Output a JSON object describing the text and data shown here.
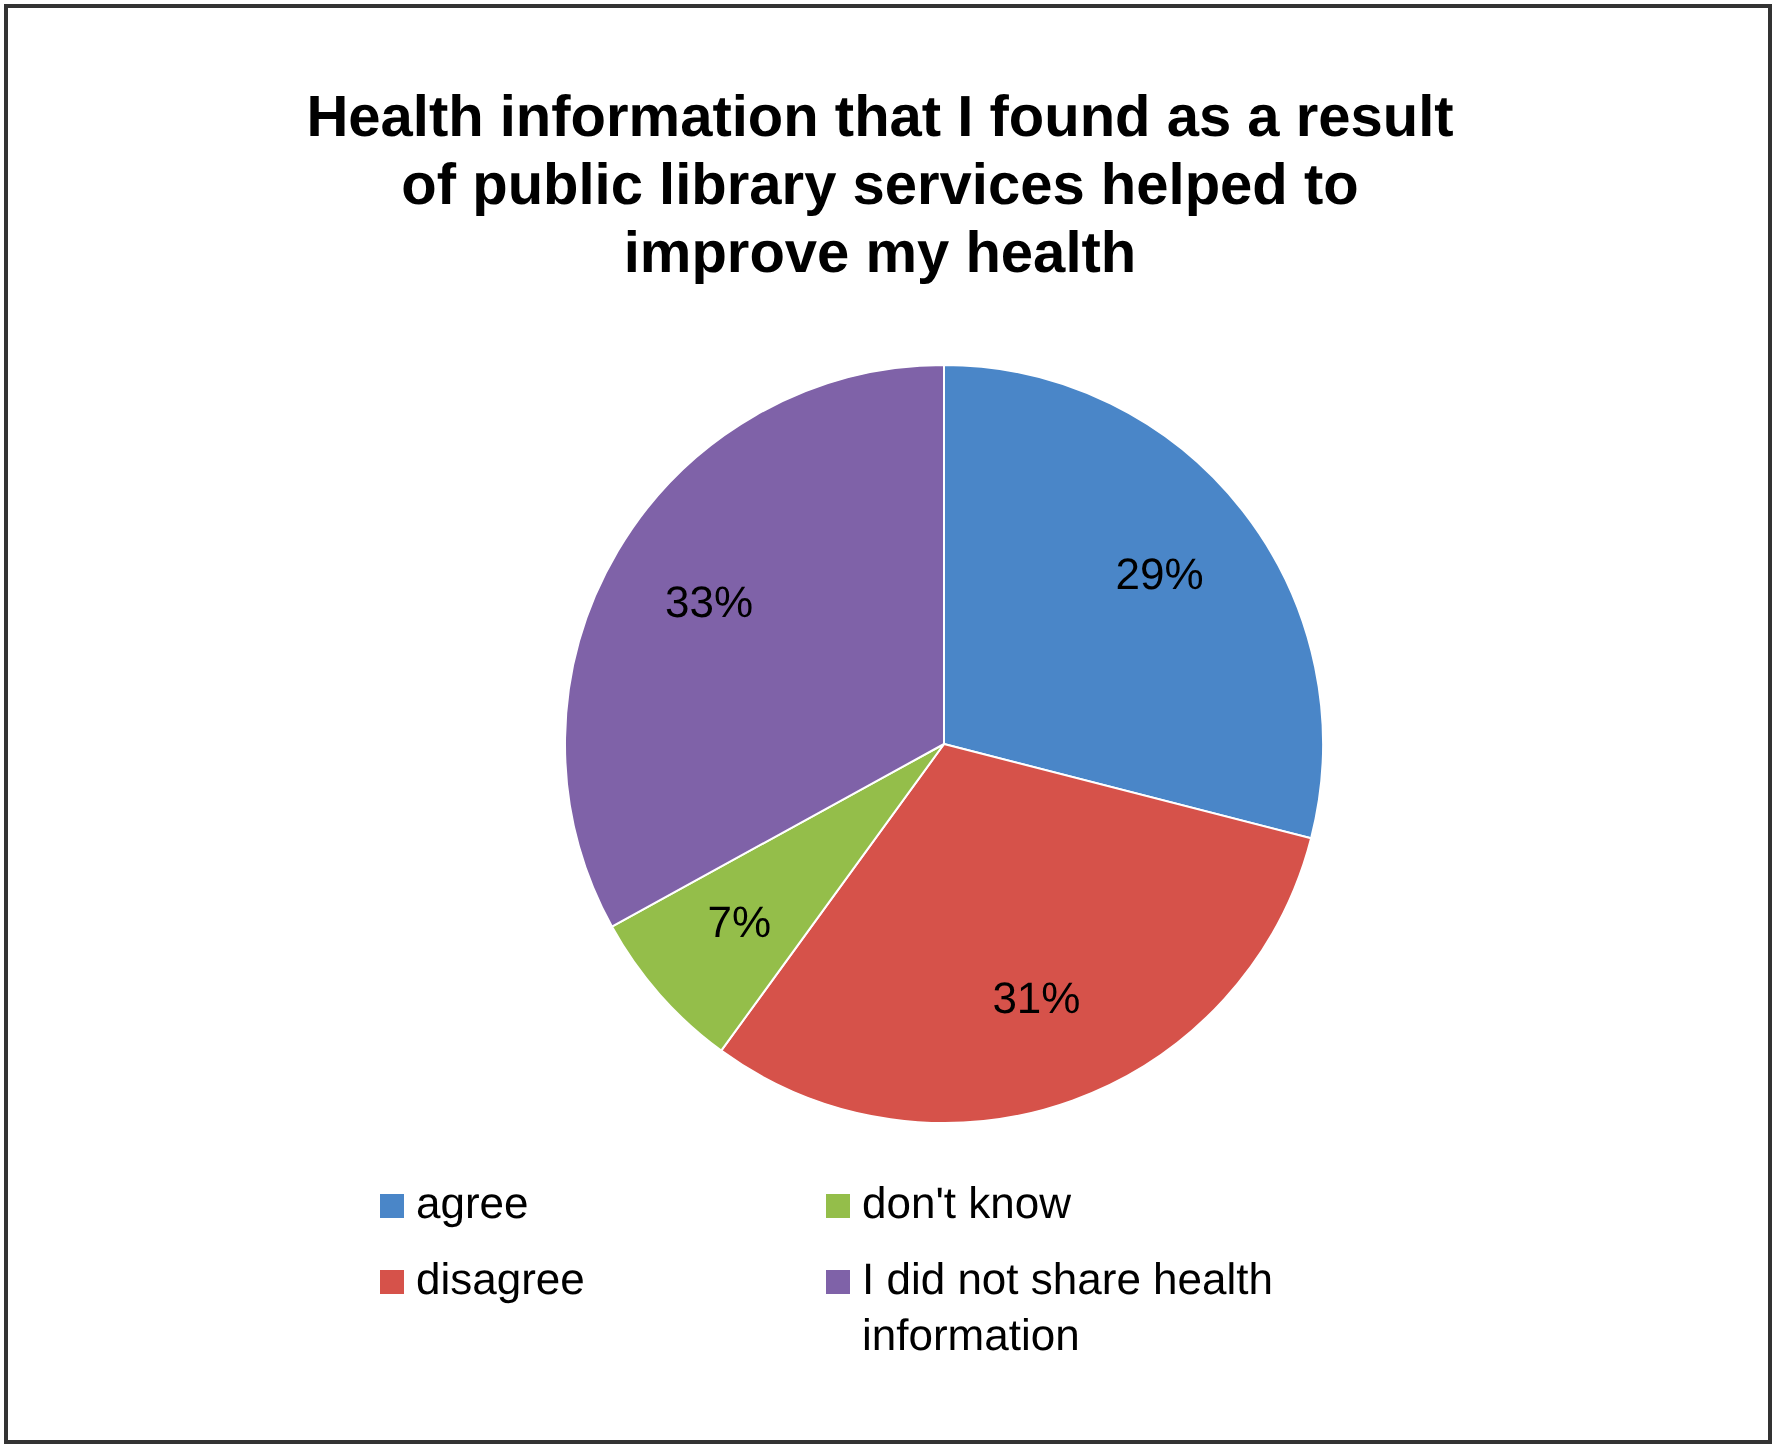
{
  "chart_data": {
    "type": "pie",
    "title": "Health information that I found as a result of public library services helped to improve my health",
    "categories": [
      "agree",
      "disagree",
      "don't know",
      "I did not share health information"
    ],
    "values": [
      29,
      31,
      7,
      33
    ],
    "colors": [
      "#4a86c8",
      "#d6524a",
      "#94be4a",
      "#7f62a8"
    ],
    "value_labels": [
      "29%",
      "31%",
      "7%",
      "33%"
    ],
    "legend": "bottom"
  }
}
